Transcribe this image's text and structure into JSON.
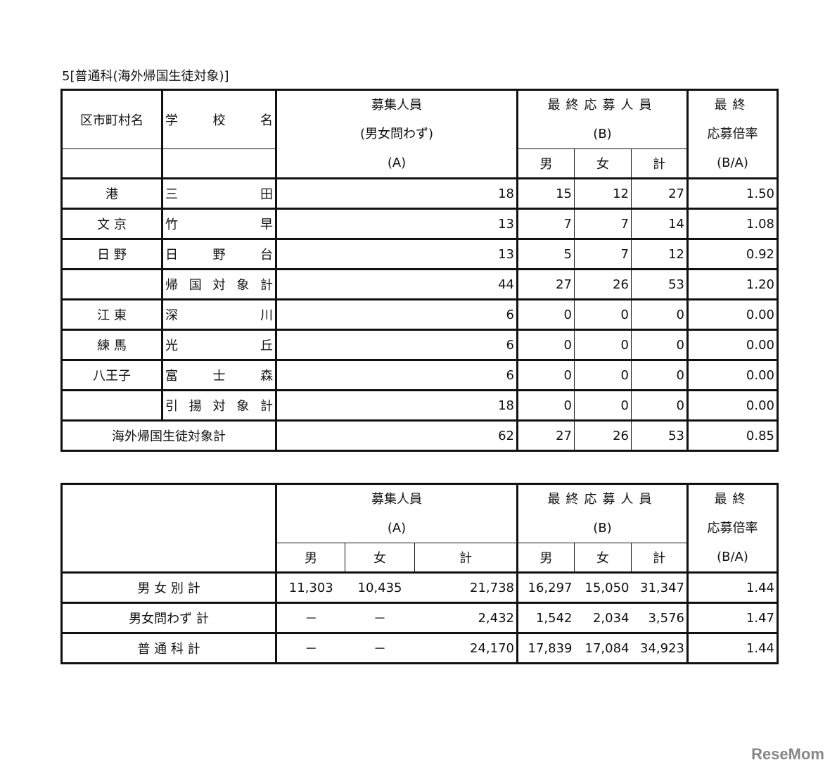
{
  "title": "5[普通科(海外帰国生徒対象)]",
  "table1": {
    "headers": {
      "district": "区市町村名",
      "school": "学　　校　　名",
      "capacity_l1": "募集人員",
      "capacity_l2": "(男女問わず)",
      "capacity_l3": "(A)",
      "applicants_l1": "最終応募人員",
      "applicants_l2": "(B)",
      "male": "男",
      "female": "女",
      "total": "計",
      "ratio_l1": "最終",
      "ratio_l2": "応募倍率",
      "ratio_l3": "(B/A)"
    },
    "rows": [
      {
        "district": "港",
        "school": "三田",
        "capacity": "18",
        "male": "15",
        "female": "12",
        "total": "27",
        "ratio": "1.50"
      },
      {
        "district": "文 京",
        "school": "竹早",
        "capacity": "13",
        "male": "7",
        "female": "7",
        "total": "14",
        "ratio": "1.08"
      },
      {
        "district": "日 野",
        "school": "日野台",
        "capacity": "13",
        "male": "5",
        "female": "7",
        "total": "12",
        "ratio": "0.92"
      },
      {
        "district": "",
        "school": "帰国対象計",
        "capacity": "44",
        "male": "27",
        "female": "26",
        "total": "53",
        "ratio": "1.20"
      },
      {
        "district": "江 東",
        "school": "深川",
        "capacity": "6",
        "male": "0",
        "female": "0",
        "total": "0",
        "ratio": "0.00"
      },
      {
        "district": "練 馬",
        "school": "光丘",
        "capacity": "6",
        "male": "0",
        "female": "0",
        "total": "0",
        "ratio": "0.00"
      },
      {
        "district": "八王子",
        "school": "富士森",
        "capacity": "6",
        "male": "0",
        "female": "0",
        "total": "0",
        "ratio": "0.00"
      },
      {
        "district": "",
        "school": "引揚対象計",
        "capacity": "18",
        "male": "0",
        "female": "0",
        "total": "0",
        "ratio": "0.00"
      }
    ],
    "grand": {
      "label": "海外帰国生徒対象計",
      "capacity": "62",
      "male": "27",
      "female": "26",
      "total": "53",
      "ratio": "0.85"
    }
  },
  "table2": {
    "headers": {
      "capacity_l1": "募集人員",
      "capacity_l2": "(A)",
      "applicants_l1": "最終応募人員",
      "applicants_l2": "(B)",
      "male": "男",
      "female": "女",
      "total": "計",
      "ratio_l1": "最終",
      "ratio_l2": "応募倍率",
      "ratio_l3": "(B/A)"
    },
    "rows": [
      {
        "label": "男 女 別 計",
        "a_male": "11,303",
        "a_female": "10,435",
        "a_total": "21,738",
        "b_male": "16,297",
        "b_female": "15,050",
        "b_total": "31,347",
        "ratio": "1.44"
      },
      {
        "label": "男女問わず 計",
        "a_male": "－",
        "a_female": "－",
        "a_total": "2,432",
        "b_male": "1,542",
        "b_female": "2,034",
        "b_total": "3,576",
        "ratio": "1.47"
      },
      {
        "label": "普 通 科 計",
        "a_male": "－",
        "a_female": "－",
        "a_total": "24,170",
        "b_male": "17,839",
        "b_female": "17,084",
        "b_total": "34,923",
        "ratio": "1.44"
      }
    ]
  },
  "watermark": "ReseMom"
}
